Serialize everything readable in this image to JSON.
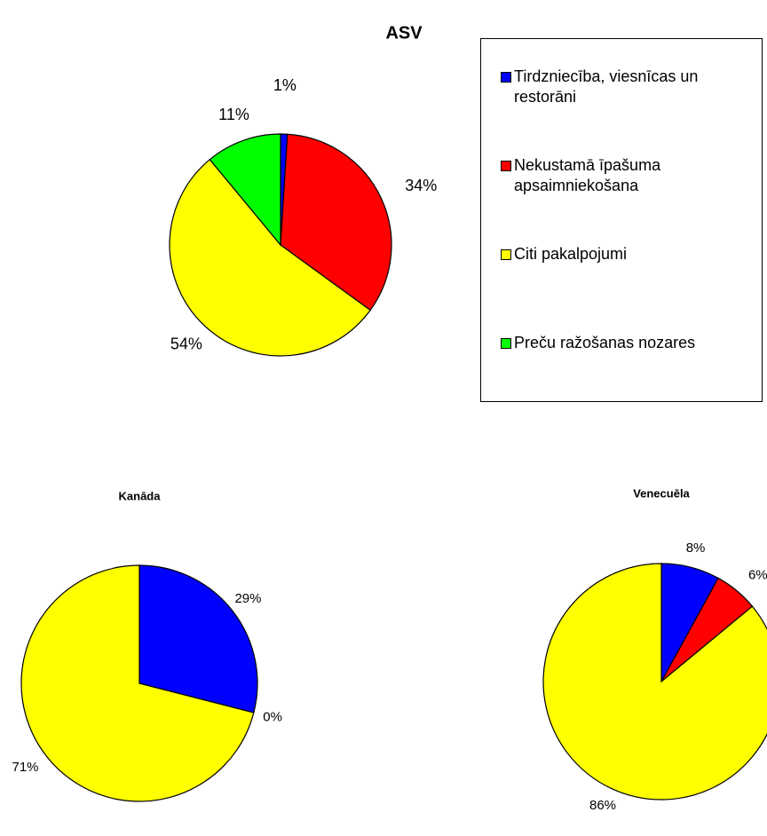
{
  "colors": {
    "trade": "#0000ff",
    "real_estate": "#ff0000",
    "other_services": "#ffff00",
    "goods": "#00ff00"
  },
  "legend": {
    "items": [
      {
        "label": "Tirdzniecība, viesnīcas un restorāni",
        "color": "#0000ff"
      },
      {
        "label": "Nekustamā īpašuma apsaimniekošana",
        "color": "#ff0000"
      },
      {
        "label": "Citi pakalpojumi",
        "color": "#ffff00"
      },
      {
        "label": "Preču ražošanas nozares",
        "color": "#00ff00"
      }
    ]
  },
  "chart_data": [
    {
      "type": "pie",
      "title": "ASV",
      "slices": [
        {
          "name": "Tirdzniecība, viesnīcas un restorāni",
          "value": 1,
          "label": "1%",
          "color": "#0000ff"
        },
        {
          "name": "Nekustamā īpašuma apsaimniekošana",
          "value": 34,
          "label": "34%",
          "color": "#ff0000"
        },
        {
          "name": "Citi pakalpojumi",
          "value": 54,
          "label": "54%",
          "color": "#ffff00"
        },
        {
          "name": "Preču ražošanas nozares",
          "value": 11,
          "label": "11%",
          "color": "#00ff00"
        }
      ]
    },
    {
      "type": "pie",
      "title": "Kanāda",
      "slices": [
        {
          "name": "Tirdzniecība, viesnīcas un restorāni",
          "value": 29,
          "label": "29%",
          "color": "#0000ff"
        },
        {
          "name": "Nekustamā īpašuma apsaimniekošana",
          "value": 0,
          "label": "0%",
          "color": "#ff0000"
        },
        {
          "name": "Citi pakalpojumi",
          "value": 71,
          "label": "71%",
          "color": "#ffff00"
        }
      ]
    },
    {
      "type": "pie",
      "title": "Venecuēla",
      "slices": [
        {
          "name": "Tirdzniecība, viesnīcas un restorāni",
          "value": 8,
          "label": "8%",
          "color": "#0000ff"
        },
        {
          "name": "Nekustamā īpašuma apsaimniekošana",
          "value": 6,
          "label": "6%",
          "color": "#ff0000"
        },
        {
          "name": "Citi pakalpojumi",
          "value": 86,
          "label": "86%",
          "color": "#ffff00"
        }
      ]
    }
  ]
}
